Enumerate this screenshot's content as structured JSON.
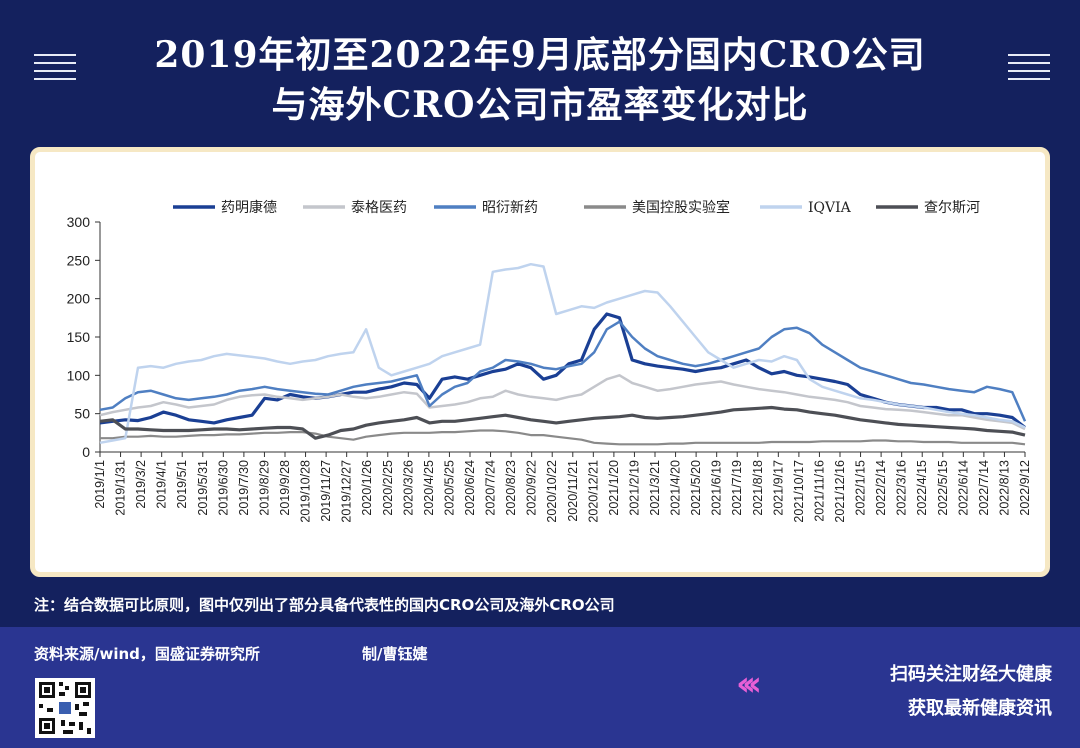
{
  "header": {
    "title_line1": "2019年初至2022年9月底部分国内CRO公司",
    "title_line2": "与海外CRO公司市盈率变化对比"
  },
  "note": "注：结合数据可比原则，图中仅列出了部分具备代表性的国内CRO公司及海外CRO公司",
  "footer": {
    "source": "资料来源/wind，国盛证券研究所",
    "author": "制/曹钰婕",
    "follow_line1": "扫码关注财经大健康",
    "follow_line2": "获取最新健康资讯",
    "chevrons": "‹‹‹"
  },
  "colors": {
    "background": "#14215e",
    "card_border": "#f6e8c4",
    "accent_pink": "#e85fd6"
  },
  "chart_data": {
    "type": "line",
    "ylim": [
      0,
      300
    ],
    "yticks": [
      0,
      50,
      100,
      150,
      200,
      250,
      300
    ],
    "x_tick_labels": [
      "2019/1/1",
      "2019/1/31",
      "2019/3/2",
      "2019/4/1",
      "2019/5/1",
      "2019/5/31",
      "2019/6/30",
      "2019/7/30",
      "2019/8/29",
      "2019/9/28",
      "2019/10/28",
      "2019/11/27",
      "2019/12/27",
      "2020/1/26",
      "2020/2/25",
      "2020/3/26",
      "2020/4/25",
      "2020/5/25",
      "2020/6/24",
      "2020/7/24",
      "2020/8/23",
      "2020/9/22",
      "2020/10/22",
      "2020/11/21",
      "2020/12/21",
      "2021/1/20",
      "2021/2/19",
      "2021/3/21",
      "2021/4/20",
      "2021/5/20",
      "2021/6/19",
      "2021/7/19",
      "2021/8/18",
      "2021/9/17",
      "2021/10/17",
      "2021/11/16",
      "2021/12/16",
      "2022/1/15",
      "2022/2/14",
      "2022/3/16",
      "2022/4/15",
      "2022/5/15",
      "2022/6/14",
      "2022/7/14",
      "2022/8/13",
      "2022/9/12"
    ],
    "legend_position": "top",
    "grid": false,
    "series": [
      {
        "name": "药明康德",
        "color": "#1a3f94",
        "width": 3.2,
        "values": [
          38,
          40,
          42,
          41,
          45,
          52,
          48,
          42,
          40,
          38,
          42,
          45,
          48,
          70,
          68,
          75,
          72,
          70,
          72,
          75,
          78,
          78,
          82,
          85,
          90,
          88,
          70,
          95,
          98,
          95,
          100,
          105,
          108,
          115,
          110,
          95,
          100,
          115,
          120,
          160,
          180,
          175,
          120,
          115,
          112,
          110,
          108,
          105,
          108,
          110,
          115,
          120,
          110,
          102,
          105,
          100,
          98,
          95,
          92,
          88,
          75,
          70,
          65,
          62,
          60,
          58,
          58,
          55,
          55,
          50,
          50,
          48,
          45,
          32
        ]
      },
      {
        "name": "泰格医药",
        "color": "#c4c6cc",
        "width": 2.5,
        "values": [
          48,
          52,
          55,
          58,
          60,
          65,
          62,
          58,
          60,
          62,
          68,
          72,
          74,
          75,
          72,
          70,
          68,
          70,
          72,
          75,
          72,
          70,
          72,
          75,
          78,
          76,
          58,
          60,
          62,
          65,
          70,
          72,
          80,
          75,
          72,
          70,
          68,
          72,
          75,
          85,
          95,
          100,
          90,
          85,
          80,
          82,
          85,
          88,
          90,
          92,
          88,
          85,
          82,
          80,
          78,
          75,
          72,
          70,
          68,
          65,
          60,
          58,
          56,
          55,
          54,
          52,
          50,
          48,
          48,
          45,
          42,
          40,
          38,
          30
        ]
      },
      {
        "name": "昭衍新药",
        "color": "#4f7fc2",
        "width": 2.5,
        "values": [
          55,
          58,
          70,
          78,
          80,
          75,
          70,
          68,
          70,
          72,
          75,
          80,
          82,
          85,
          82,
          80,
          78,
          76,
          75,
          80,
          85,
          88,
          90,
          92,
          96,
          100,
          60,
          75,
          85,
          90,
          105,
          110,
          120,
          118,
          115,
          110,
          108,
          112,
          115,
          130,
          160,
          170,
          150,
          135,
          125,
          120,
          115,
          112,
          115,
          120,
          125,
          130,
          135,
          150,
          160,
          162,
          155,
          140,
          130,
          120,
          110,
          105,
          100,
          95,
          90,
          88,
          85,
          82,
          80,
          78,
          85,
          82,
          78,
          40
        ]
      },
      {
        "name": "美国控股实验室",
        "color": "#8a8a8a",
        "width": 2.2,
        "values": [
          18,
          18,
          20,
          20,
          21,
          20,
          20,
          21,
          22,
          22,
          23,
          23,
          24,
          25,
          25,
          26,
          26,
          24,
          20,
          18,
          16,
          20,
          22,
          24,
          25,
          25,
          25,
          26,
          26,
          27,
          28,
          28,
          27,
          25,
          22,
          22,
          20,
          18,
          16,
          12,
          11,
          10,
          10,
          10,
          10,
          11,
          11,
          12,
          12,
          12,
          12,
          12,
          12,
          13,
          13,
          13,
          13,
          14,
          14,
          14,
          14,
          15,
          15,
          14,
          14,
          13,
          13,
          13,
          12,
          12,
          12,
          12,
          12,
          10
        ]
      },
      {
        "name": "IQVIA",
        "color": "#bfd3ee",
        "width": 2.5,
        "values": [
          12,
          15,
          18,
          110,
          112,
          110,
          115,
          118,
          120,
          125,
          128,
          126,
          124,
          122,
          118,
          115,
          118,
          120,
          125,
          128,
          130,
          160,
          110,
          100,
          105,
          110,
          115,
          125,
          130,
          135,
          140,
          235,
          238,
          240,
          245,
          242,
          180,
          185,
          190,
          188,
          195,
          200,
          205,
          210,
          208,
          190,
          170,
          150,
          130,
          120,
          110,
          115,
          120,
          118,
          125,
          120,
          95,
          85,
          80,
          75,
          70,
          68,
          65,
          62,
          60,
          58,
          55,
          52,
          50,
          48,
          45,
          42,
          40,
          32
        ]
      },
      {
        "name": "查尔斯河",
        "color": "#4d4f55",
        "width": 3.2,
        "values": [
          40,
          42,
          30,
          30,
          29,
          28,
          28,
          28,
          29,
          30,
          30,
          29,
          30,
          31,
          32,
          32,
          30,
          18,
          22,
          28,
          30,
          35,
          38,
          40,
          42,
          45,
          38,
          40,
          40,
          42,
          44,
          46,
          48,
          45,
          42,
          40,
          38,
          40,
          42,
          44,
          45,
          46,
          48,
          45,
          44,
          45,
          46,
          48,
          50,
          52,
          55,
          56,
          57,
          58,
          56,
          55,
          52,
          50,
          48,
          45,
          42,
          40,
          38,
          36,
          35,
          34,
          33,
          32,
          31,
          30,
          28,
          27,
          26,
          22
        ]
      }
    ]
  }
}
